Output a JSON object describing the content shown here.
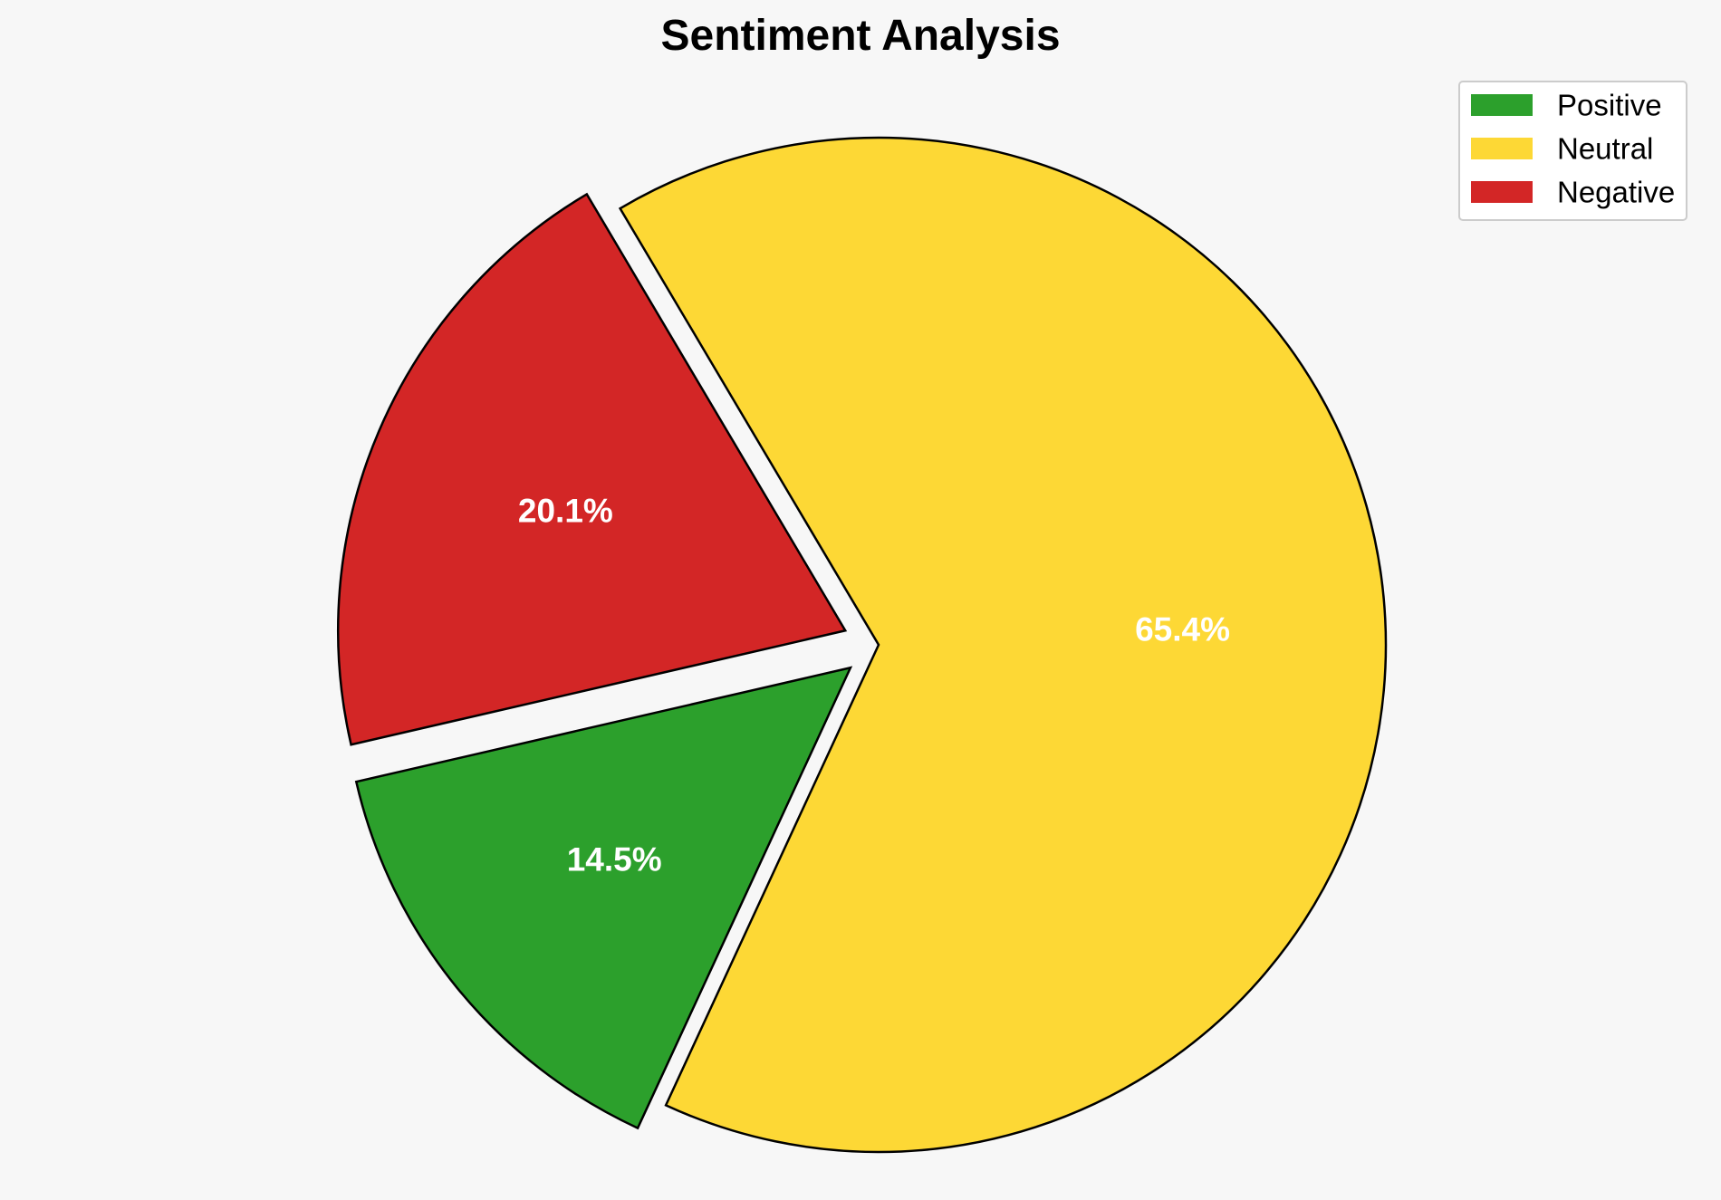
{
  "chart_data": {
    "type": "pie",
    "title": "Sentiment Analysis",
    "categories": [
      "Positive",
      "Neutral",
      "Negative"
    ],
    "values": [
      14.5,
      65.4,
      20.1
    ],
    "labels": [
      "14.5%",
      "65.4%",
      "20.1%"
    ],
    "colors": [
      "#2ca02c",
      "#fdd835",
      "#d32626"
    ],
    "exploded": [
      true,
      false,
      true
    ],
    "start_angle_deg": 193,
    "direction": "counterclockwise",
    "edge_color": "#000000",
    "legend": {
      "position": "top-right",
      "entries": [
        "Positive",
        "Neutral",
        "Negative"
      ]
    }
  }
}
